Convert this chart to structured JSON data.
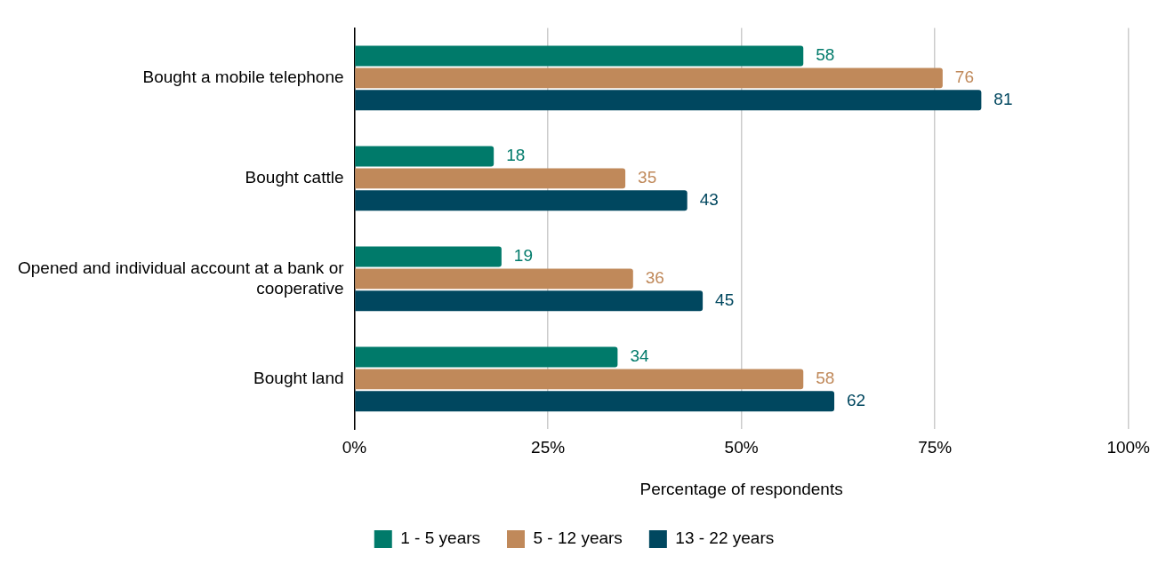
{
  "chart_data": {
    "type": "bar",
    "orientation": "horizontal",
    "xlabel": "Percentage of respondents",
    "categories": [
      "Bought a mobile telephone",
      "Bought cattle",
      "Opened and individual account at a bank or cooperative",
      "Bought land"
    ],
    "series": [
      {
        "name": "1 - 5 years",
        "color": "#007a6a",
        "values": [
          58,
          18,
          19,
          34
        ]
      },
      {
        "name": "5 - 12 years",
        "color": "#c0895a",
        "values": [
          76,
          35,
          36,
          58
        ]
      },
      {
        "name": "13 - 22 years",
        "color": "#00475f",
        "values": [
          81,
          43,
          45,
          62
        ]
      }
    ],
    "xlim": [
      0,
      100
    ],
    "xticks": [
      {
        "value": 0,
        "label": "0%"
      },
      {
        "value": 25,
        "label": "25%"
      },
      {
        "value": 50,
        "label": "50%"
      },
      {
        "value": 75,
        "label": "75%"
      },
      {
        "value": 100,
        "label": "100%"
      }
    ],
    "grid": "x",
    "legend": "bottom",
    "data_labels": true
  }
}
